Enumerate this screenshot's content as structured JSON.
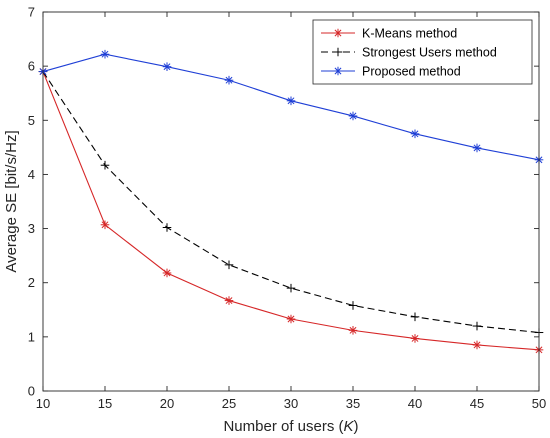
{
  "chart_data": {
    "type": "line",
    "title": "",
    "xlabel": "Number of users (",
    "xlabel_var": "K",
    "xlabel_close": ")",
    "ylabel": "Average SE [bit/s/Hz]",
    "xlim": [
      10,
      50
    ],
    "ylim": [
      0,
      7
    ],
    "xticks": [
      10,
      15,
      20,
      25,
      30,
      35,
      40,
      45,
      50
    ],
    "yticks": [
      0,
      1,
      2,
      3,
      4,
      5,
      6,
      7
    ],
    "grid": false,
    "legend_position": "top-right",
    "x": [
      10,
      15,
      20,
      25,
      30,
      35,
      40,
      45,
      50
    ],
    "series": [
      {
        "name": "K-Means method",
        "color": "#d62728",
        "line_style": "solid",
        "marker": "asterisk",
        "values": [
          5.9,
          3.07,
          2.18,
          1.67,
          1.33,
          1.12,
          0.97,
          0.85,
          0.76
        ]
      },
      {
        "name": "Strongest Users method",
        "color": "#000000",
        "line_style": "dashed",
        "marker": "plus",
        "values": [
          5.9,
          4.17,
          3.02,
          2.33,
          1.9,
          1.58,
          1.37,
          1.2,
          1.08
        ]
      },
      {
        "name": "Proposed method",
        "color": "#1f3fd6",
        "line_style": "solid",
        "marker": "asterisk",
        "values": [
          5.9,
          6.22,
          5.99,
          5.74,
          5.36,
          5.08,
          4.75,
          4.49,
          4.27
        ]
      }
    ]
  }
}
